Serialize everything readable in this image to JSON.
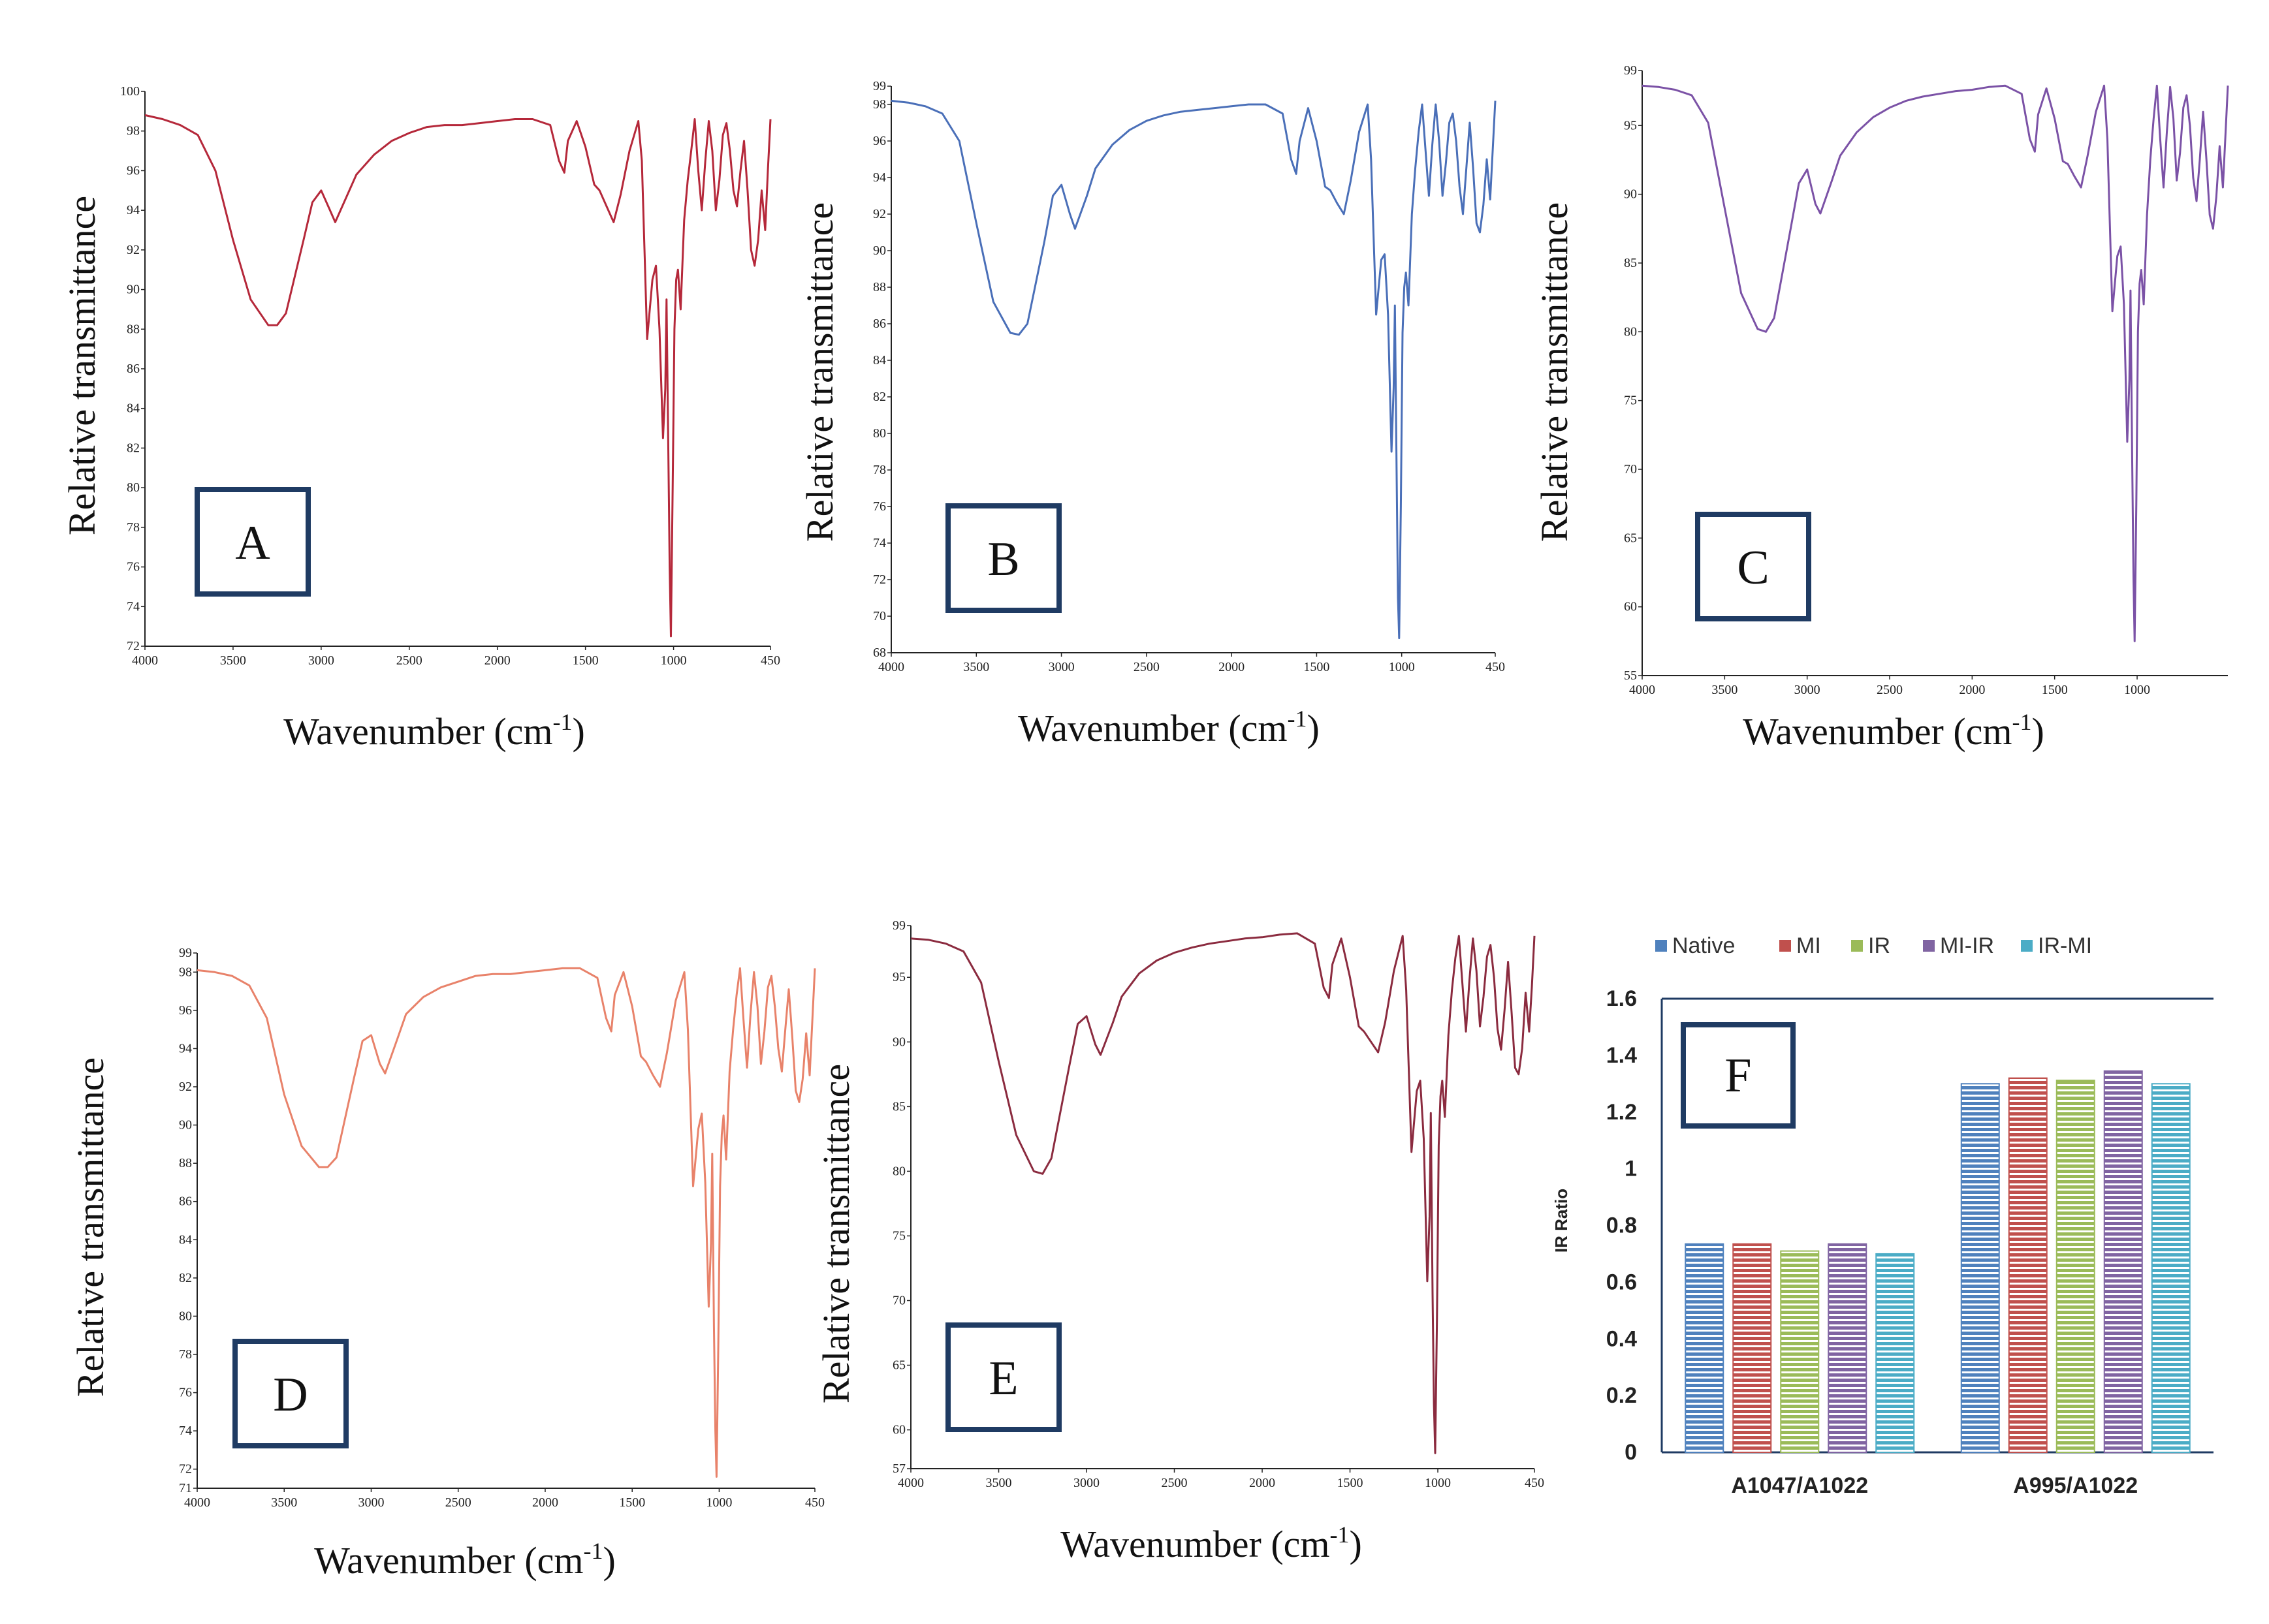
{
  "figure": {
    "axis_title_y": "Relative transmittance",
    "axis_title_x_main": "Wavenumber (cm",
    "axis_title_x_sup": "-1",
    "axis_title_x_close": ")"
  },
  "chart_data": [
    {
      "type": "line",
      "panel": "A",
      "title": "",
      "xlabel": "Wavenumber (cm-1)",
      "ylabel": "Relative transmittance",
      "color": "#b5283a",
      "xlim": [
        4000,
        450
      ],
      "ylim": [
        72,
        100
      ],
      "x_ticks": [
        "4000",
        "3500",
        "3000",
        "2500",
        "2000",
        "1500",
        "1000",
        "450"
      ],
      "y_ticks": [
        "72",
        "74",
        "76",
        "78",
        "80",
        "82",
        "84",
        "86",
        "88",
        "90",
        "92",
        "94",
        "96",
        "98",
        "100"
      ],
      "x": [
        4000,
        3900,
        3800,
        3700,
        3600,
        3500,
        3400,
        3300,
        3250,
        3200,
        3100,
        3050,
        3000,
        2950,
        2920,
        2850,
        2800,
        2700,
        2600,
        2500,
        2400,
        2300,
        2200,
        2100,
        2000,
        1900,
        1800,
        1700,
        1650,
        1620,
        1600,
        1550,
        1500,
        1450,
        1420,
        1380,
        1340,
        1300,
        1250,
        1200,
        1180,
        1150,
        1120,
        1100,
        1080,
        1060,
        1047,
        1040,
        1030,
        1022,
        1015,
        1005,
        995,
        985,
        975,
        960,
        940,
        920,
        900,
        880,
        860,
        840,
        820,
        800,
        780,
        760,
        740,
        720,
        700,
        680,
        660,
        640,
        620,
        600,
        580,
        560,
        540,
        520,
        500,
        480,
        465,
        450
      ],
      "y": [
        98.8,
        98.6,
        98.3,
        97.8,
        96.0,
        92.5,
        89.5,
        88.2,
        88.2,
        88.8,
        92.5,
        94.4,
        95.0,
        94.0,
        93.4,
        94.8,
        95.8,
        96.8,
        97.5,
        97.9,
        98.2,
        98.3,
        98.3,
        98.4,
        98.5,
        98.6,
        98.6,
        98.3,
        96.5,
        95.9,
        97.5,
        98.5,
        97.2,
        95.3,
        95.0,
        94.2,
        93.4,
        94.8,
        97.0,
        98.5,
        96.5,
        87.5,
        90.5,
        91.2,
        88.0,
        82.5,
        85.0,
        89.5,
        82.0,
        76.0,
        72.5,
        80.0,
        88.0,
        90.5,
        91.0,
        89.0,
        93.5,
        95.5,
        97.0,
        98.6,
        96.0,
        94.0,
        96.5,
        98.5,
        97.0,
        94.0,
        95.5,
        97.8,
        98.4,
        97.0,
        95.0,
        94.2,
        96.0,
        97.5,
        95.0,
        92.0,
        91.2,
        92.5,
        95.0,
        93.0,
        96.0,
        98.6
      ]
    },
    {
      "type": "line",
      "panel": "B",
      "title": "",
      "xlabel": "Wavenumber (cm-1)",
      "ylabel": "Relative transmittance",
      "color": "#4a6fb8",
      "xlim": [
        4000,
        450
      ],
      "ylim": [
        68,
        99
      ],
      "x_ticks": [
        "4000",
        "3500",
        "3000",
        "2500",
        "2000",
        "1500",
        "1000",
        "450"
      ],
      "y_ticks": [
        "68",
        "70",
        "72",
        "74",
        "76",
        "78",
        "80",
        "82",
        "84",
        "86",
        "88",
        "90",
        "92",
        "94",
        "96",
        "98",
        "99"
      ],
      "x": [
        4000,
        3900,
        3800,
        3700,
        3600,
        3500,
        3400,
        3300,
        3250,
        3200,
        3100,
        3050,
        3000,
        2950,
        2920,
        2850,
        2800,
        2700,
        2600,
        2500,
        2400,
        2300,
        2200,
        2100,
        2000,
        1900,
        1800,
        1700,
        1650,
        1620,
        1600,
        1550,
        1500,
        1450,
        1420,
        1380,
        1340,
        1300,
        1250,
        1200,
        1180,
        1150,
        1120,
        1100,
        1080,
        1060,
        1047,
        1040,
        1030,
        1022,
        1015,
        1005,
        995,
        985,
        975,
        960,
        940,
        920,
        900,
        880,
        860,
        840,
        820,
        800,
        780,
        760,
        740,
        720,
        700,
        680,
        660,
        640,
        620,
        600,
        580,
        560,
        540,
        520,
        500,
        480,
        465,
        450
      ],
      "y": [
        98.2,
        98.1,
        97.9,
        97.5,
        96.0,
        91.5,
        87.2,
        85.5,
        85.4,
        86.0,
        90.5,
        93.0,
        93.6,
        92.0,
        91.2,
        93.0,
        94.5,
        95.8,
        96.6,
        97.1,
        97.4,
        97.6,
        97.7,
        97.8,
        97.9,
        98.0,
        98.0,
        97.5,
        95.0,
        94.2,
        96.0,
        97.8,
        96.0,
        93.5,
        93.3,
        92.6,
        92.0,
        93.8,
        96.5,
        98.0,
        95.0,
        86.5,
        89.5,
        89.8,
        86.5,
        79.0,
        82.5,
        87.0,
        78.0,
        71.0,
        68.8,
        76.0,
        85.5,
        88.0,
        88.8,
        87.0,
        92.0,
        94.5,
        96.5,
        98.0,
        95.5,
        93.0,
        95.8,
        98.0,
        96.0,
        93.0,
        94.8,
        97.0,
        97.5,
        96.0,
        93.5,
        92.0,
        94.5,
        97.0,
        94.5,
        91.5,
        91.0,
        92.5,
        95.0,
        92.8,
        95.5,
        98.2
      ]
    },
    {
      "type": "line",
      "panel": "C",
      "title": "",
      "xlabel": "Wavenumber (cm-1)",
      "ylabel": "Relative transmittance",
      "color": "#7b52a6",
      "xlim": [
        4000,
        450
      ],
      "ylim": [
        55,
        99
      ],
      "x_ticks": [
        "4000",
        "3500",
        "3000",
        "2500",
        "2000",
        "1500",
        "1000"
      ],
      "y_ticks": [
        "55",
        "60",
        "65",
        "70",
        "75",
        "80",
        "85",
        "90",
        "95",
        "99"
      ],
      "x": [
        4000,
        3900,
        3800,
        3700,
        3600,
        3500,
        3400,
        3300,
        3250,
        3200,
        3100,
        3050,
        3000,
        2950,
        2920,
        2850,
        2800,
        2700,
        2600,
        2500,
        2400,
        2300,
        2200,
        2100,
        2000,
        1900,
        1800,
        1700,
        1650,
        1620,
        1600,
        1550,
        1500,
        1450,
        1420,
        1380,
        1340,
        1300,
        1250,
        1200,
        1180,
        1150,
        1120,
        1100,
        1080,
        1060,
        1047,
        1040,
        1030,
        1022,
        1015,
        1005,
        995,
        985,
        975,
        960,
        940,
        920,
        900,
        880,
        860,
        840,
        820,
        800,
        780,
        760,
        740,
        720,
        700,
        680,
        660,
        640,
        620,
        600,
        580,
        560,
        540,
        520,
        500,
        480,
        465,
        450
      ],
      "y": [
        97.9,
        97.8,
        97.6,
        97.2,
        95.2,
        89.0,
        82.8,
        80.2,
        80.0,
        81.0,
        87.5,
        90.8,
        91.8,
        89.3,
        88.6,
        91.0,
        92.8,
        94.5,
        95.6,
        96.3,
        96.8,
        97.1,
        97.3,
        97.5,
        97.6,
        97.8,
        97.9,
        97.3,
        94.0,
        93.1,
        95.8,
        97.7,
        95.5,
        92.4,
        92.2,
        91.3,
        90.5,
        92.8,
        96.0,
        97.9,
        94.0,
        81.5,
        85.5,
        86.2,
        82.0,
        72.0,
        76.5,
        83.0,
        71.0,
        62.0,
        57.5,
        67.5,
        80.0,
        83.5,
        84.5,
        82.0,
        88.5,
        92.5,
        95.5,
        97.9,
        94.0,
        90.5,
        94.5,
        97.8,
        95.5,
        91.0,
        93.0,
        96.3,
        97.2,
        95.0,
        91.2,
        89.5,
        92.5,
        96.0,
        92.5,
        88.5,
        87.5,
        89.8,
        93.5,
        90.5,
        94.2,
        97.9
      ]
    },
    {
      "type": "line",
      "panel": "D",
      "title": "",
      "xlabel": "Wavenumber (cm-1)",
      "ylabel": "Relative transmittance",
      "color": "#e8826a",
      "xlim": [
        4000,
        450
      ],
      "ylim": [
        71,
        99
      ],
      "x_ticks": [
        "4000",
        "3500",
        "3000",
        "2500",
        "2000",
        "1500",
        "1000",
        "450"
      ],
      "y_ticks": [
        "71",
        "72",
        "74",
        "76",
        "78",
        "80",
        "82",
        "84",
        "86",
        "88",
        "90",
        "92",
        "94",
        "96",
        "98",
        "99"
      ],
      "x": [
        4000,
        3900,
        3800,
        3700,
        3600,
        3500,
        3400,
        3300,
        3250,
        3200,
        3100,
        3050,
        3000,
        2950,
        2920,
        2850,
        2800,
        2700,
        2600,
        2500,
        2400,
        2300,
        2200,
        2100,
        2000,
        1900,
        1800,
        1700,
        1650,
        1620,
        1600,
        1550,
        1500,
        1450,
        1420,
        1380,
        1340,
        1300,
        1250,
        1200,
        1180,
        1150,
        1120,
        1100,
        1080,
        1060,
        1047,
        1040,
        1030,
        1022,
        1015,
        1005,
        995,
        985,
        975,
        960,
        940,
        920,
        900,
        880,
        860,
        840,
        820,
        800,
        780,
        760,
        740,
        720,
        700,
        680,
        660,
        640,
        620,
        600,
        580,
        560,
        540,
        520,
        500,
        480,
        465,
        450
      ],
      "y": [
        98.1,
        98.0,
        97.8,
        97.3,
        95.6,
        91.6,
        88.9,
        87.8,
        87.8,
        88.3,
        92.4,
        94.4,
        94.7,
        93.2,
        92.7,
        94.5,
        95.8,
        96.7,
        97.2,
        97.5,
        97.8,
        97.9,
        97.9,
        98.0,
        98.1,
        98.2,
        98.2,
        97.7,
        95.6,
        94.9,
        96.8,
        98.0,
        96.2,
        93.6,
        93.3,
        92.6,
        92.0,
        93.8,
        96.5,
        98.0,
        95.0,
        86.8,
        89.8,
        90.6,
        87.0,
        80.5,
        83.8,
        88.5,
        79.5,
        74.0,
        71.6,
        78.5,
        86.8,
        89.5,
        90.5,
        88.2,
        92.8,
        95.0,
        96.8,
        98.2,
        95.5,
        93.0,
        95.8,
        98.0,
        96.2,
        93.2,
        94.9,
        97.2,
        97.8,
        96.2,
        94.0,
        92.8,
        95.0,
        97.1,
        94.6,
        91.8,
        91.2,
        92.4,
        94.8,
        92.6,
        95.4,
        98.2
      ]
    },
    {
      "type": "line",
      "panel": "E",
      "title": "",
      "xlabel": "Wavenumber (cm-1)",
      "ylabel": "Relative transmittance",
      "color": "#8b2b3f",
      "xlim": [
        4000,
        450
      ],
      "ylim": [
        57,
        99
      ],
      "x_ticks": [
        "4000",
        "3500",
        "3000",
        "2500",
        "2000",
        "1500",
        "1000",
        "450"
      ],
      "y_ticks": [
        "57",
        "60",
        "65",
        "70",
        "75",
        "80",
        "85",
        "90",
        "95",
        "99"
      ],
      "x": [
        4000,
        3900,
        3800,
        3700,
        3600,
        3500,
        3400,
        3300,
        3250,
        3200,
        3100,
        3050,
        3000,
        2950,
        2920,
        2850,
        2800,
        2700,
        2600,
        2500,
        2400,
        2300,
        2200,
        2100,
        2000,
        1900,
        1800,
        1700,
        1650,
        1620,
        1600,
        1550,
        1500,
        1450,
        1420,
        1380,
        1340,
        1300,
        1250,
        1200,
        1180,
        1150,
        1120,
        1100,
        1080,
        1060,
        1047,
        1040,
        1030,
        1022,
        1015,
        1005,
        995,
        985,
        975,
        960,
        940,
        920,
        900,
        880,
        860,
        840,
        820,
        800,
        780,
        760,
        740,
        720,
        700,
        680,
        660,
        640,
        620,
        600,
        580,
        560,
        540,
        520,
        500,
        480,
        465,
        450
      ],
      "y": [
        98.0,
        97.9,
        97.6,
        97.0,
        94.6,
        88.5,
        82.8,
        80.0,
        79.8,
        81.0,
        88.0,
        91.4,
        92.0,
        89.8,
        89.0,
        91.5,
        93.5,
        95.3,
        96.3,
        96.9,
        97.3,
        97.6,
        97.8,
        98.0,
        98.1,
        98.3,
        98.4,
        97.6,
        94.2,
        93.4,
        96.0,
        98.0,
        95.0,
        91.2,
        90.8,
        90.0,
        89.2,
        91.5,
        95.5,
        98.2,
        94.0,
        81.5,
        86.2,
        87.0,
        82.5,
        71.5,
        76.5,
        84.5,
        70.5,
        62.0,
        58.2,
        68.5,
        82.0,
        85.8,
        87.0,
        84.2,
        90.5,
        94.0,
        96.5,
        98.2,
        94.5,
        90.8,
        94.8,
        98.0,
        95.5,
        91.2,
        93.5,
        96.6,
        97.5,
        95.0,
        91.0,
        89.4,
        92.5,
        96.2,
        92.3,
        88.0,
        87.5,
        89.5,
        93.8,
        90.8,
        94.2,
        98.2
      ]
    },
    {
      "type": "bar",
      "panel": "F",
      "title": "",
      "xlabel": "",
      "ylabel": "IR Ratio",
      "ylim": [
        0,
        1.6
      ],
      "y_ticks": [
        "0",
        "0.2",
        "0.4",
        "0.6",
        "0.8",
        "1",
        "1.2",
        "1.4",
        "1.6"
      ],
      "categories": [
        "A1047/A1022",
        "A995/A1022"
      ],
      "legend_position": "top",
      "series": [
        {
          "name": "Native",
          "color": "#4f81bd",
          "values": [
            0.735,
            1.3
          ]
        },
        {
          "name": "MI",
          "color": "#c0504d",
          "values": [
            0.735,
            1.32
          ]
        },
        {
          "name": "IR",
          "color": "#9bbb59",
          "values": [
            0.71,
            1.312
          ]
        },
        {
          "name": "MI-IR",
          "color": "#8064a2",
          "values": [
            0.735,
            1.345
          ]
        },
        {
          "name": "IR-MI",
          "color": "#4bacc6",
          "values": [
            0.7,
            1.3
          ]
        }
      ]
    }
  ]
}
